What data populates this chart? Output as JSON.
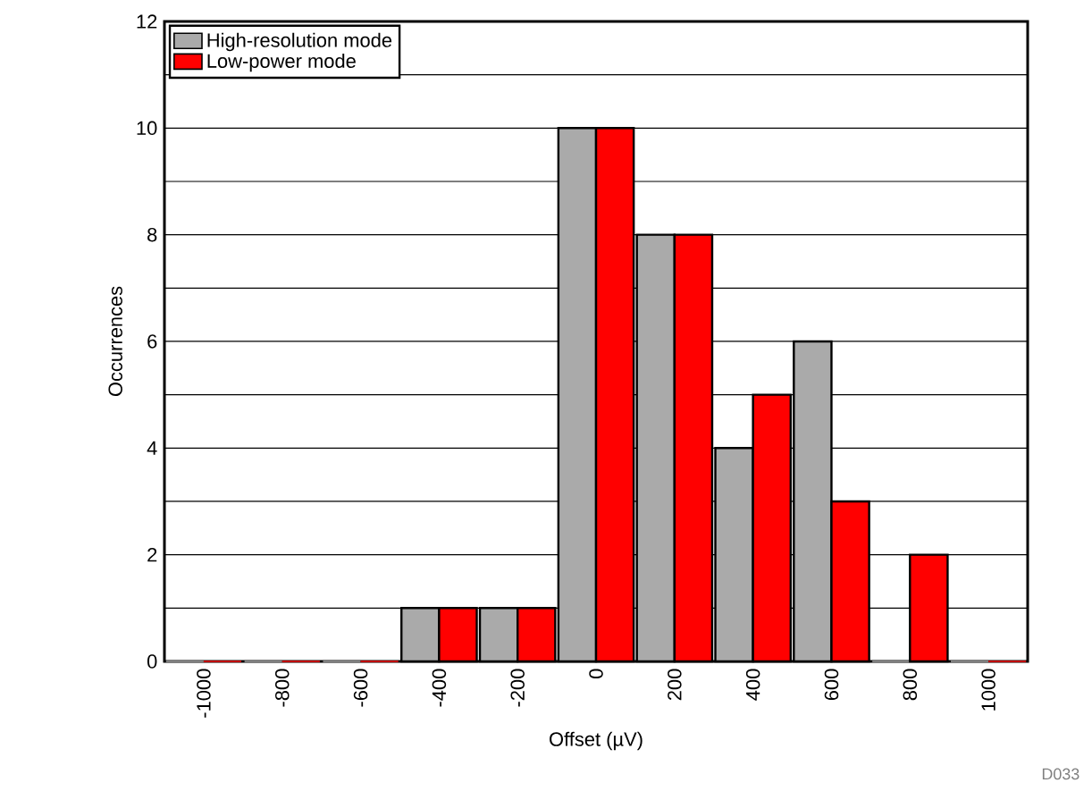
{
  "chart_data": {
    "type": "bar",
    "xlabel": "Offset (µV)",
    "ylabel": "Occurrences",
    "categories": [
      "-1000",
      "-800",
      "-600",
      "-400",
      "-200",
      "0",
      "200",
      "400",
      "600",
      "800",
      "1000"
    ],
    "series": [
      {
        "name": "High-resolution mode",
        "color": "#aaaaaa",
        "values": [
          0,
          0,
          0,
          1,
          1,
          10,
          8,
          4,
          6,
          0,
          0
        ]
      },
      {
        "name": "Low-power mode",
        "color": "#ff0000",
        "values": [
          0,
          0,
          0,
          1,
          1,
          10,
          8,
          5,
          3,
          2,
          0
        ]
      }
    ],
    "ylim": [
      0,
      12
    ],
    "yticks": [
      0,
      {
        "value": 1,
        "label": null
      },
      2,
      {
        "value": 3,
        "label": null
      },
      4,
      {
        "value": 5,
        "label": null
      },
      6,
      {
        "value": 7,
        "label": null
      },
      8,
      {
        "value": 9,
        "label": null
      },
      10,
      {
        "value": 11,
        "label": null
      },
      12
    ],
    "grid": "y",
    "legend": "top left",
    "annotations": [
      "D033"
    ]
  }
}
